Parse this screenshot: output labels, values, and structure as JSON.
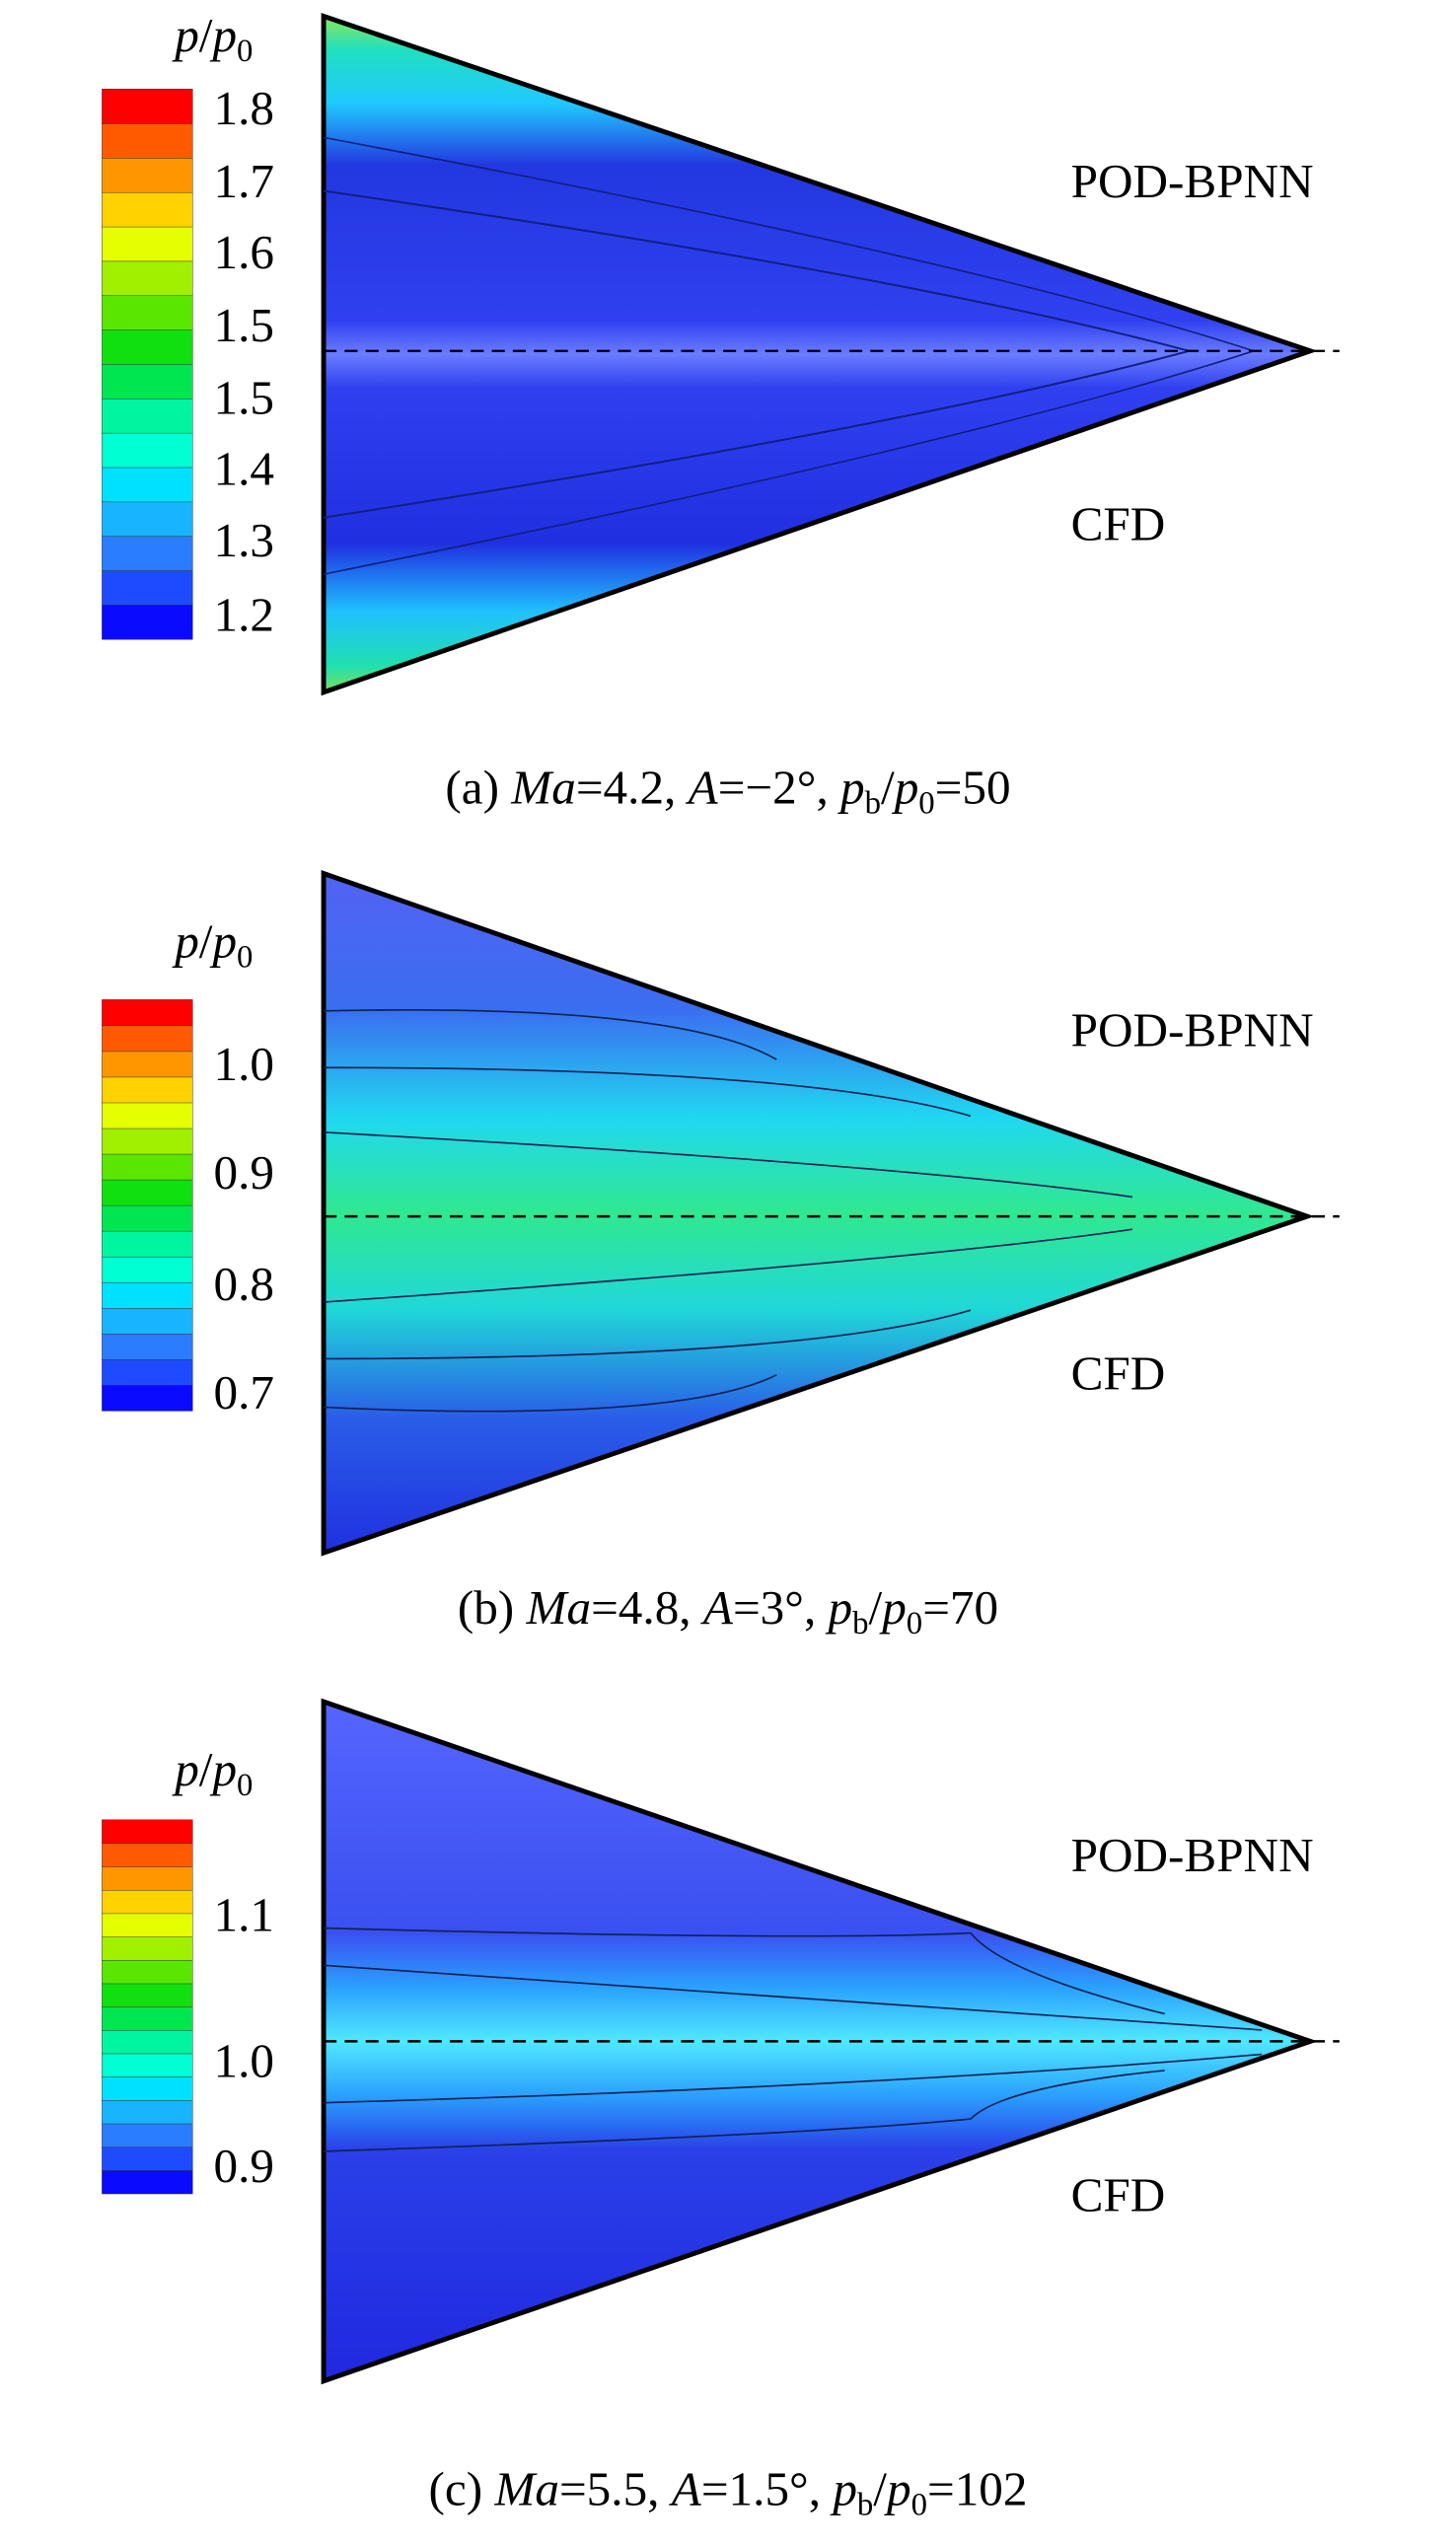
{
  "colorbar_colors": [
    "#0a0aff",
    "#1e4bff",
    "#2a7dff",
    "#19b4ff",
    "#00e1ff",
    "#00ffd2",
    "#00f5a0",
    "#00e650",
    "#10e010",
    "#5ae600",
    "#a0f000",
    "#e6ff00",
    "#ffd200",
    "#ff9600",
    "#ff5a00",
    "#ff0000"
  ],
  "panels": [
    {
      "legend_title": [
        {
          "text": "p",
          "style": "italic"
        },
        {
          "text": "/",
          "style": "normal"
        },
        {
          "text": "p",
          "style": "italic"
        },
        {
          "text": "0",
          "style": "sub"
        }
      ],
      "colorbar_labels": [
        "1.8",
        "1.7",
        "1.6",
        "1.5",
        "1.5",
        "1.4",
        "1.3",
        "1.2"
      ],
      "top_label": "POD-BPNN",
      "bottom_label": "CFD",
      "caption": [
        {
          "text": "(a) ",
          "style": "normal"
        },
        {
          "text": "Ma",
          "style": "italic"
        },
        {
          "text": "=4.2, ",
          "style": "normal"
        },
        {
          "text": "A",
          "style": "italic"
        },
        {
          "text": "=−2°, ",
          "style": "normal"
        },
        {
          "text": "p",
          "style": "italic"
        },
        {
          "text": "b",
          "style": "sub"
        },
        {
          "text": "/",
          "style": "normal"
        },
        {
          "text": "p",
          "style": "italic"
        },
        {
          "text": "0",
          "style": "sub"
        },
        {
          "text": "=50",
          "style": "normal"
        }
      ]
    },
    {
      "legend_title": [
        {
          "text": "p",
          "style": "italic"
        },
        {
          "text": "/",
          "style": "normal"
        },
        {
          "text": "p",
          "style": "italic"
        },
        {
          "text": "0",
          "style": "sub"
        }
      ],
      "colorbar_labels": [
        "1.0",
        "0.9",
        "0.8",
        "0.7"
      ],
      "top_label": "POD-BPNN",
      "bottom_label": "CFD",
      "caption": [
        {
          "text": "(b) ",
          "style": "normal"
        },
        {
          "text": "Ma",
          "style": "italic"
        },
        {
          "text": "=4.8, ",
          "style": "normal"
        },
        {
          "text": "A",
          "style": "italic"
        },
        {
          "text": "=3°, ",
          "style": "normal"
        },
        {
          "text": "p",
          "style": "italic"
        },
        {
          "text": "b",
          "style": "sub"
        },
        {
          "text": "/",
          "style": "normal"
        },
        {
          "text": "p",
          "style": "italic"
        },
        {
          "text": "0",
          "style": "sub"
        },
        {
          "text": "=70",
          "style": "normal"
        }
      ]
    },
    {
      "legend_title": [
        {
          "text": "p",
          "style": "italic"
        },
        {
          "text": "/",
          "style": "normal"
        },
        {
          "text": "p",
          "style": "italic"
        },
        {
          "text": "0",
          "style": "sub"
        }
      ],
      "colorbar_labels": [
        "1.1",
        "1.0",
        "0.9"
      ],
      "top_label": "POD-BPNN",
      "bottom_label": "CFD",
      "caption": [
        {
          "text": "(c) ",
          "style": "normal"
        },
        {
          "text": "Ma",
          "style": "italic"
        },
        {
          "text": "=5.5, ",
          "style": "normal"
        },
        {
          "text": "A",
          "style": "italic"
        },
        {
          "text": "=1.5°, ",
          "style": "normal"
        },
        {
          "text": "p",
          "style": "italic"
        },
        {
          "text": "b",
          "style": "sub"
        },
        {
          "text": "/",
          "style": "normal"
        },
        {
          "text": "p",
          "style": "italic"
        },
        {
          "text": "0",
          "style": "sub"
        },
        {
          "text": "=102",
          "style": "normal"
        }
      ]
    }
  ]
}
